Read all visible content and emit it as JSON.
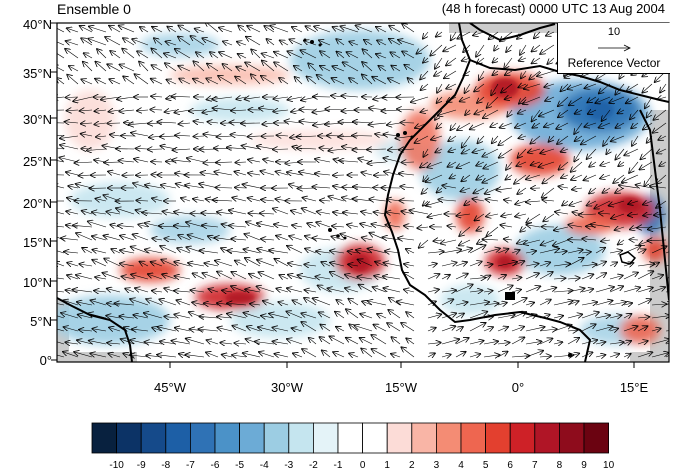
{
  "title_left": "Ensemble 0",
  "title_right": "(48 h forecast) 0000 UTC 13 Aug 2004",
  "lat_labels": [
    "40°N",
    "35°N",
    "30°N",
    "25°N",
    "20°N",
    "15°N",
    "10°N",
    "5°N",
    "0°"
  ],
  "lon_labels": [
    "45°W",
    "30°W",
    "15°W",
    "0°",
    "15°E"
  ],
  "reference_vector": {
    "magnitude": "10",
    "label": "Reference Vector"
  },
  "colorbar": {
    "labels": [
      "-10",
      "-9",
      "-8",
      "-7",
      "-6",
      "-5",
      "-4",
      "-3",
      "-2",
      "-1",
      "0",
      "1",
      "2",
      "3",
      "4",
      "5",
      "6",
      "7",
      "8",
      "9",
      "10"
    ],
    "colors": [
      "#08213f",
      "#0c3366",
      "#154a8a",
      "#1d5fa6",
      "#2f72b5",
      "#4b92c8",
      "#6cabd6",
      "#9ccde3",
      "#c5e5ef",
      "#e4f3f8",
      "#ffffff",
      "#ffffff",
      "#fcdcd7",
      "#f9b5a6",
      "#f48c74",
      "#ee6650",
      "#e3402f",
      "#ce2127",
      "#b01526",
      "#8e0c1c",
      "#6b0311"
    ]
  },
  "colors": {
    "land_outline": "#000000",
    "missing_data": "#cccccc",
    "positive_anomaly": "#d7301f",
    "negative_anomaly": "#2f72b5"
  }
}
